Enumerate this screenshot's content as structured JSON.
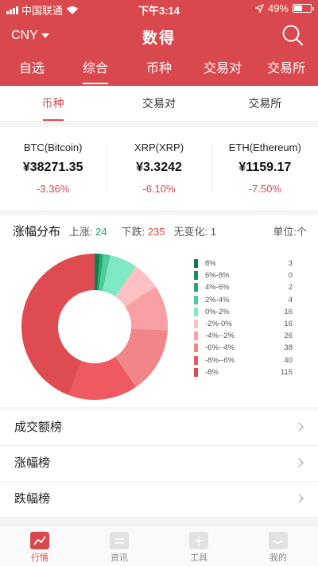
{
  "statusbar": {
    "carrier": "中国联通",
    "time": "下午3:14",
    "battery": "49%",
    "battery_level": 0.49
  },
  "navbar": {
    "currency": "CNY",
    "title": "数得"
  },
  "main_tabs": [
    {
      "label": "自选"
    },
    {
      "label": "综合"
    },
    {
      "label": "币种"
    },
    {
      "label": "交易对"
    },
    {
      "label": "交易所"
    }
  ],
  "sub_tabs": [
    {
      "label": "币种"
    },
    {
      "label": "交易对"
    },
    {
      "label": "交易所"
    }
  ],
  "tickers": [
    {
      "name": "BTC(Bitcoin)",
      "price": "¥38271.35",
      "change": "-3.36%"
    },
    {
      "name": "XRP(XRP)",
      "price": "¥3.3242",
      "change": "-6.10%"
    },
    {
      "name": "ETH(Ethereum)",
      "price": "¥1159.17",
      "change": "-7.50%"
    }
  ],
  "distribution": {
    "title": "涨幅分布",
    "up_label": "上涨:",
    "up_value": "24",
    "down_label": "下跌:",
    "down_value": "235",
    "flat_label": "无变化:",
    "flat_value": "1",
    "unit": "单位:个"
  },
  "chart_data": {
    "type": "pie",
    "categories": [
      "8%",
      "6%-8%",
      "4%-6%",
      "2%-4%",
      "0%-2%",
      "-2%-0%",
      "-4%--2%",
      "-6%--4%",
      "-8%--6%",
      "-8%"
    ],
    "values": [
      3,
      0,
      2,
      4,
      16,
      16,
      26,
      38,
      40,
      115
    ],
    "colors": [
      "#127a4c",
      "#1a8d5b",
      "#26a86f",
      "#4fcb95",
      "#7fe8c4",
      "#fbc1c3",
      "#f8a0a3",
      "#f28588",
      "#ee5a60",
      "#de4b51"
    ]
  },
  "list": [
    {
      "label": "成交额榜"
    },
    {
      "label": "涨幅榜"
    },
    {
      "label": "跌幅榜"
    }
  ],
  "tabbar": [
    {
      "label": "行情",
      "icon": "chart-trend-icon"
    },
    {
      "label": "资讯",
      "icon": "news-icon"
    },
    {
      "label": "工具",
      "icon": "tools-icon"
    },
    {
      "label": "我的",
      "icon": "profile-icon"
    }
  ]
}
